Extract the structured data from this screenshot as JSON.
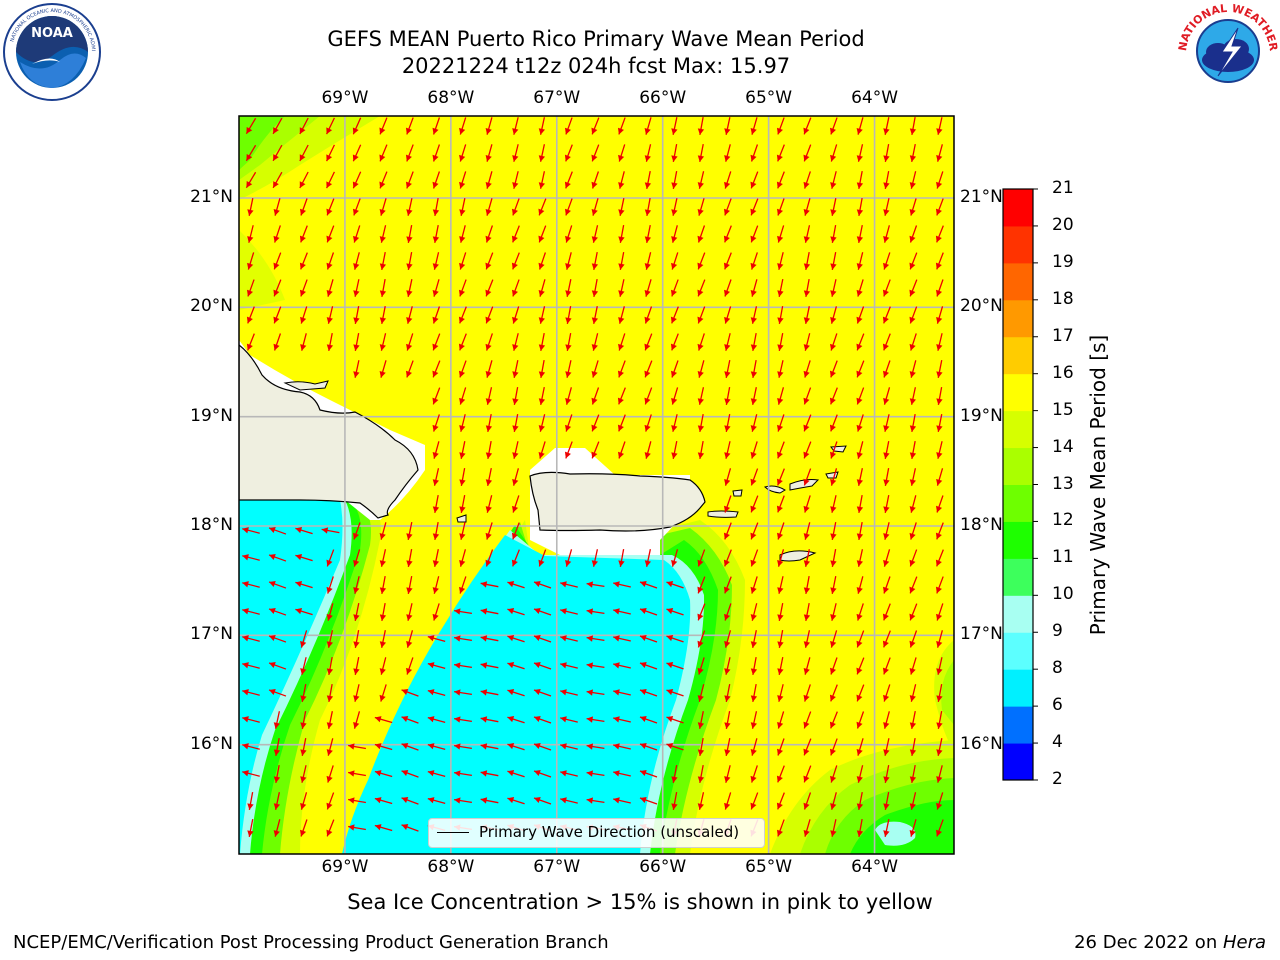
{
  "title": {
    "line1": "GEFS MEAN Puerto Rico Primary Wave Mean Period",
    "line2": "20221224 t12z 024h fcst   Max: 15.97"
  },
  "axes": {
    "lon_labels": [
      "69°W",
      "68°W",
      "67°W",
      "66°W",
      "65°W",
      "64°W"
    ],
    "lat_labels": [
      "21°N",
      "20°N",
      "19°N",
      "18°N",
      "17°N",
      "16°N"
    ],
    "lon_range": [
      -70.0,
      -63.25
    ],
    "lat_range": [
      15.0,
      21.75
    ],
    "grid": true
  },
  "colorbar": {
    "label": "Primary Wave Mean Period [s]",
    "ticks": [
      "2",
      "4",
      "6",
      "8",
      "9",
      "10",
      "11",
      "12",
      "13",
      "14",
      "15",
      "16",
      "17",
      "18",
      "19",
      "20",
      "21"
    ],
    "colors": [
      "#0000ff",
      "#0070ff",
      "#00f0ff",
      "#5cffff",
      "#a8fff2",
      "#3dff5c",
      "#1eff00",
      "#6eff00",
      "#aaff00",
      "#d6ff00",
      "#ffff00",
      "#ffcc00",
      "#ff9900",
      "#ff6600",
      "#ff3300",
      "#ff0000"
    ]
  },
  "legend": {
    "label": "Primary Wave Direction (unscaled)",
    "placement": "bottom-center"
  },
  "colors": {
    "land": "#efefe0",
    "arrow": "#ee0000",
    "grid": "#b8b8b8",
    "ocean_short_period": "#00ffff",
    "ocean_long_period": "#ffff00"
  },
  "note": "Sea Ice Concentration > 15% is shown in pink to yellow",
  "footer": {
    "left": "NCEP/EMC/Verification Post Processing Product Generation Branch",
    "right_prefix": "26 Dec 2022 on ",
    "right_host": "Hera"
  },
  "logos": {
    "left": "NOAA",
    "right": "NATIONAL WEATHER SERVICE"
  }
}
